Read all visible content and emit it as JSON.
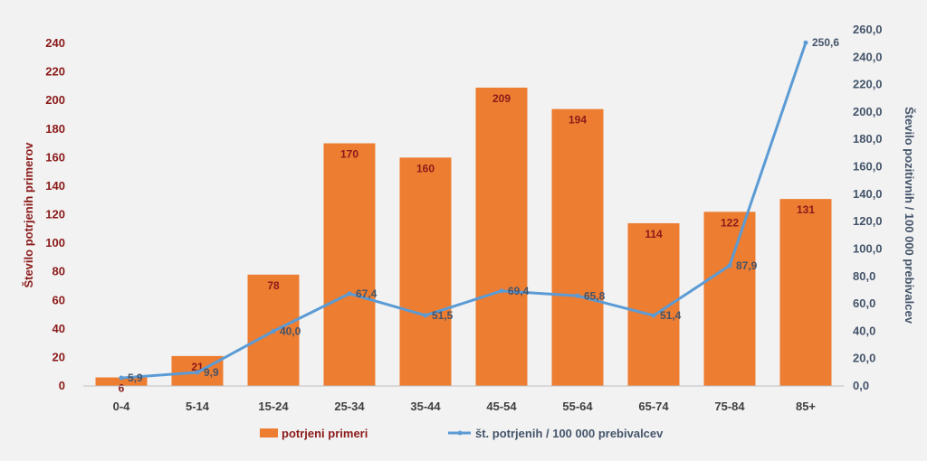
{
  "chart_data": {
    "type": "bar",
    "categories": [
      "0-4",
      "5-14",
      "15-24",
      "25-34",
      "35-44",
      "45-54",
      "55-64",
      "65-74",
      "75-84",
      "85+"
    ],
    "series": [
      {
        "name": "potrjeni primeri",
        "type": "bar",
        "axis": "left",
        "color": "#ed7d31",
        "values": [
          6,
          21,
          78,
          170,
          160,
          209,
          194,
          114,
          122,
          131
        ],
        "labels": [
          "6",
          "21",
          "78",
          "170",
          "160",
          "209",
          "194",
          "114",
          "122",
          "131"
        ]
      },
      {
        "name": "št. potrjenih / 100 000 prebivalcev",
        "type": "line",
        "axis": "right",
        "color": "#5b9bd5",
        "values": [
          5.9,
          9.9,
          40.0,
          67.4,
          51.5,
          69.4,
          65.8,
          51.4,
          87.9,
          250.6
        ],
        "labels": [
          "5,9",
          "9,9",
          "40,0",
          "67,4",
          "51,5",
          "69,4",
          "65,8",
          "51,4",
          "87,9",
          "250,6"
        ]
      }
    ],
    "ylabel": "Število potrjenih primerov",
    "y2label": "Število pozitivnih / 100 000 prebivalcev",
    "ylim": [
      0,
      240
    ],
    "y2lim": [
      0,
      260
    ],
    "yticks": [
      "0",
      "20",
      "40",
      "60",
      "80",
      "100",
      "120",
      "140",
      "160",
      "180",
      "200",
      "220",
      "240"
    ],
    "y2ticks": [
      "0,0",
      "20,0",
      "40,0",
      "60,0",
      "80,0",
      "100,0",
      "120,0",
      "140,0",
      "160,0",
      "180,0",
      "200,0",
      "220,0",
      "240,0",
      "260,0"
    ],
    "grid": false,
    "legend": "bottom",
    "legend_labels": {
      "bars": "potrjeni primeri",
      "line": "št. potrjenih / 100 000 prebivalcev"
    }
  }
}
